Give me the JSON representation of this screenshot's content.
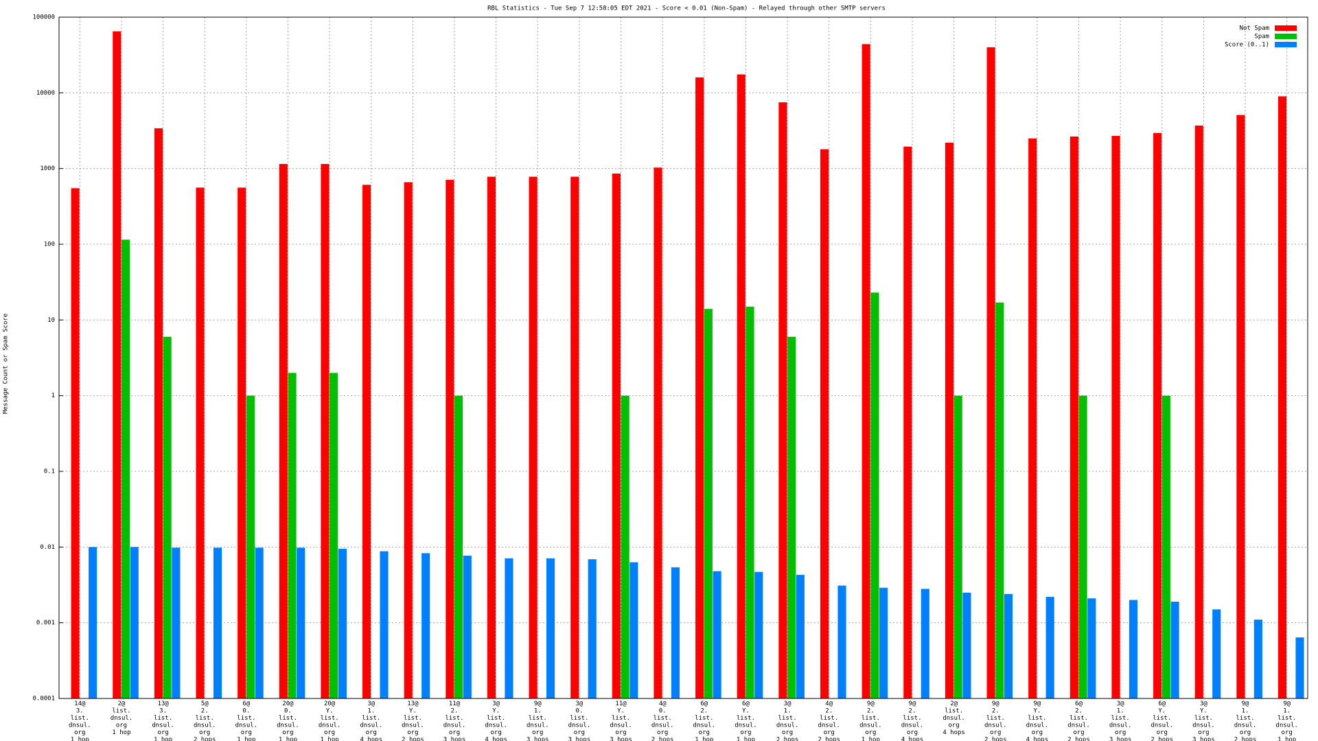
{
  "chart_data": {
    "type": "bar",
    "title": "RBL Statistics - Tue Sep  7 12:58:05 EDT 2021 - Score < 0.01 (Non-Spam) - Relayed through other SMTP servers",
    "y_label": "Message Count or Spam Score",
    "log_scale": true,
    "grid": true,
    "legend": "top-right",
    "categories": [
      "14@\n3.\nlist.\ndnsul.\norg\n1 hop",
      "2@\nlist.\ndnsul.\norg\n1 hop",
      "13@\n3.\nlist.\ndnsul.\norg\n1 hop",
      "5@\n2.\nlist.\ndnsul.\norg\n2 hops",
      "6@\n0.\nlist.\ndnsul.\norg\n1 hop",
      "20@\n0.\nlist.\ndnsul.\norg\n1 hop",
      "20@\nY.\nlist.\ndnsul.\norg\n1 hop",
      "3@\n1.\nlist.\ndnsul.\norg\n4 hops",
      "13@\nY.\nlist.\ndnsul.\norg\n2 hops",
      "11@\n2.\nlist.\ndnsul.\norg\n3 hops",
      "3@\nY.\nlist.\ndnsul.\norg\n4 hops",
      "9@\n1.\nlist.\ndnsul.\norg\n3 hops",
      "3@\n0.\nlist.\ndnsul.\norg\n3 hops",
      "11@\nY.\nlist.\ndnsul.\norg\n3 hops",
      "4@\n0.\nlist.\ndnsul.\norg\n2 hops",
      "6@\n2.\nlist.\ndnsul.\norg\n1 hop",
      "6@\nY.\nlist.\ndnsul.\norg\n1 hop",
      "3@\n1.\nlist.\ndnsul.\norg\n2 hops",
      "4@\n2.\nlist.\ndnsul.\norg\n2 hops",
      "9@\n2.\nlist.\ndnsul.\norg\n1 hop",
      "9@\n2.\nlist.\ndnsul.\norg\n4 hops",
      "2@\nlist.\ndnsul.\norg\n4 hops",
      "9@\n2.\nlist.\ndnsul.\norg\n2 hops",
      "9@\nY.\nlist.\ndnsul.\norg\n4 hops",
      "6@\n2.\nlist.\ndnsul.\norg\n2 hops",
      "3@\n1.\nlist.\ndnsul.\norg\n3 hops",
      "6@\nY.\nlist.\ndnsul.\norg\n2 hops",
      "3@\nY.\nlist.\ndnsul.\norg\n3 hops",
      "9@\n1.\nlist.\ndnsul.\norg\n2 hops",
      "9@\n1.\nlist.\ndnsul.\norg\n1 hop"
    ],
    "series": [
      {
        "name": "Not Spam",
        "color": "#ff0000",
        "values": [
          550,
          65000,
          3400,
          560,
          560,
          1150,
          1150,
          610,
          660,
          710,
          780,
          780,
          780,
          860,
          1030,
          16000,
          17500,
          7500,
          1800,
          44000,
          1950,
          2200,
          40000,
          2500,
          2650,
          2700,
          2950,
          3700,
          5100,
          9000
        ]
      },
      {
        "name": "Spam",
        "color": "#00c000",
        "values": [
          null,
          115,
          6,
          null,
          1,
          2,
          2,
          null,
          null,
          1,
          null,
          null,
          null,
          1,
          null,
          14,
          15,
          6,
          null,
          23,
          null,
          1,
          17,
          null,
          1,
          null,
          1,
          null,
          null,
          null
        ]
      },
      {
        "name": "Score (0..1)",
        "color": "#0080ff",
        "values": [
          0.01,
          0.01,
          0.0098,
          0.0098,
          0.0098,
          0.0098,
          0.0095,
          0.0088,
          0.0083,
          0.0077,
          0.0071,
          0.0071,
          0.0069,
          0.0063,
          0.0054,
          0.0048,
          0.0047,
          0.0043,
          0.0031,
          0.0029,
          0.0028,
          0.0025,
          0.0024,
          0.0022,
          0.0021,
          0.002,
          0.0019,
          0.0015,
          0.0011,
          0.00064
        ]
      }
    ],
    "ylim": [
      0.0001,
      100000
    ],
    "yticks": [
      0.0001,
      0.001,
      0.01,
      0.1,
      1,
      10,
      100,
      1000,
      10000,
      100000
    ]
  }
}
